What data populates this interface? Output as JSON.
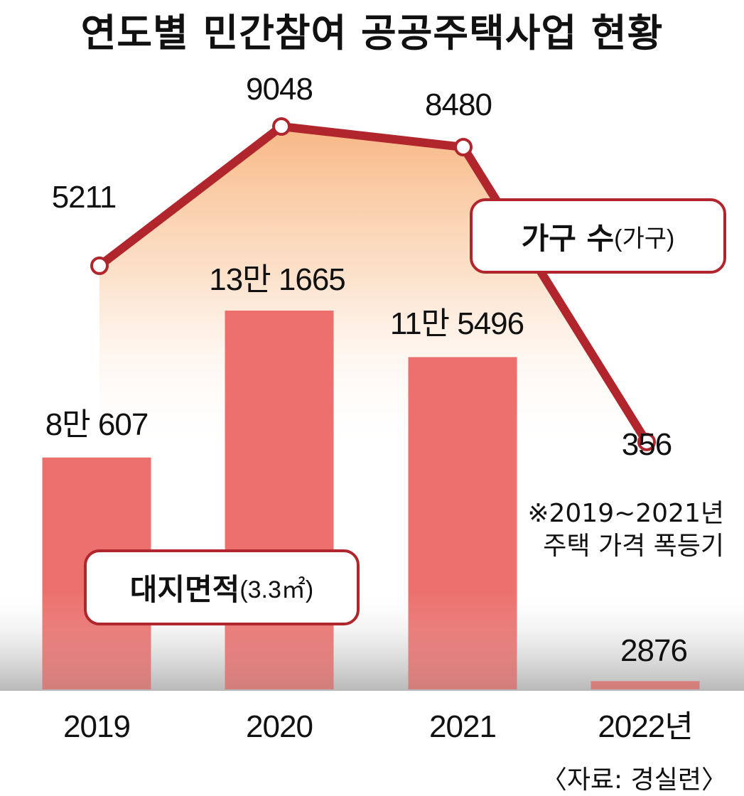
{
  "chart_data": {
    "type": "bar",
    "title": "연도별 민간참여 공공주택사업 현황",
    "categories": [
      "2019",
      "2020",
      "2021",
      "2022년"
    ],
    "series": [
      {
        "name": "대지면적",
        "unit": "(3.3㎡)",
        "type": "bar",
        "values": [
          80607,
          131665,
          115496,
          2876
        ],
        "labels": [
          "8만 607",
          "13만 1665",
          "11만 5496",
          "2876"
        ],
        "color": "#ec706d"
      },
      {
        "name": "가구 수",
        "unit": "(가구)",
        "type": "line",
        "values": [
          5211,
          9048,
          8480,
          356
        ],
        "labels": [
          "5211",
          "9048",
          "8480",
          "356"
        ],
        "color": "#b1252d"
      }
    ],
    "note": [
      "※2019~2021년",
      "주택 가격 폭등기"
    ],
    "source": "〈자료: 경실련〉"
  }
}
